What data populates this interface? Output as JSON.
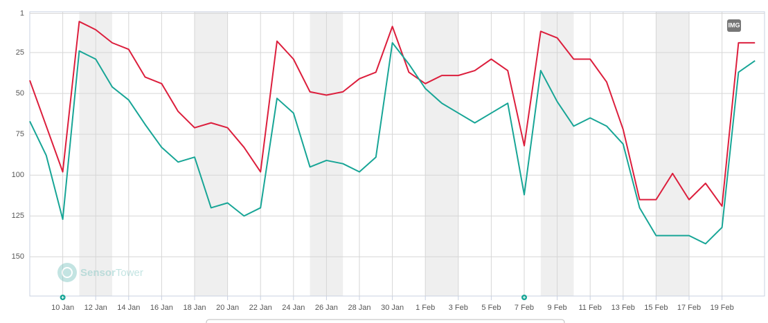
{
  "chart_data": {
    "type": "line",
    "categories": [
      null,
      null,
      "10 Jan",
      null,
      "12 Jan",
      null,
      "14 Jan",
      null,
      "16 Jan",
      null,
      "18 Jan",
      null,
      "20 Jan",
      null,
      "22 Jan",
      null,
      "24 Jan",
      null,
      "26 Jan",
      null,
      "28 Jan",
      null,
      "30 Jan",
      null,
      "1 Feb",
      null,
      "3 Feb",
      null,
      "5 Feb",
      null,
      "7 Feb",
      null,
      "9 Feb",
      null,
      "11 Feb",
      null,
      "13 Feb",
      null,
      "15 Feb",
      null,
      "17 Feb",
      null,
      "19 Feb",
      null,
      null
    ],
    "series": [
      {
        "color": "#dc1e3c",
        "values": [
          42,
          70,
          98,
          6,
          11,
          19,
          23,
          40,
          44,
          61,
          71,
          68,
          71,
          83,
          98,
          18,
          29,
          49,
          51,
          49,
          41,
          37,
          9,
          37,
          44,
          39,
          39,
          36,
          29,
          36,
          82,
          12,
          16,
          29,
          29,
          43,
          72,
          115,
          115,
          99,
          115,
          105,
          119,
          19,
          19
        ]
      },
      {
        "color": "#17a596",
        "values": [
          67,
          88,
          127,
          24,
          29,
          46,
          54,
          69,
          83,
          92,
          89,
          120,
          117,
          125,
          120,
          53,
          62,
          95,
          91,
          93,
          98,
          89,
          19,
          32,
          47,
          56,
          62,
          68,
          62,
          56,
          112,
          36,
          55,
          70,
          65,
          70,
          81,
          120,
          137,
          137,
          137,
          142,
          132,
          37,
          30
        ]
      }
    ],
    "ylim": [
      0,
      174
    ],
    "yticks": [
      1,
      25,
      50,
      75,
      100,
      125,
      150
    ],
    "y_inverted": true,
    "grid": true,
    "watermark": [
      "Sensor",
      "Tower"
    ],
    "export_button": "IMG"
  }
}
